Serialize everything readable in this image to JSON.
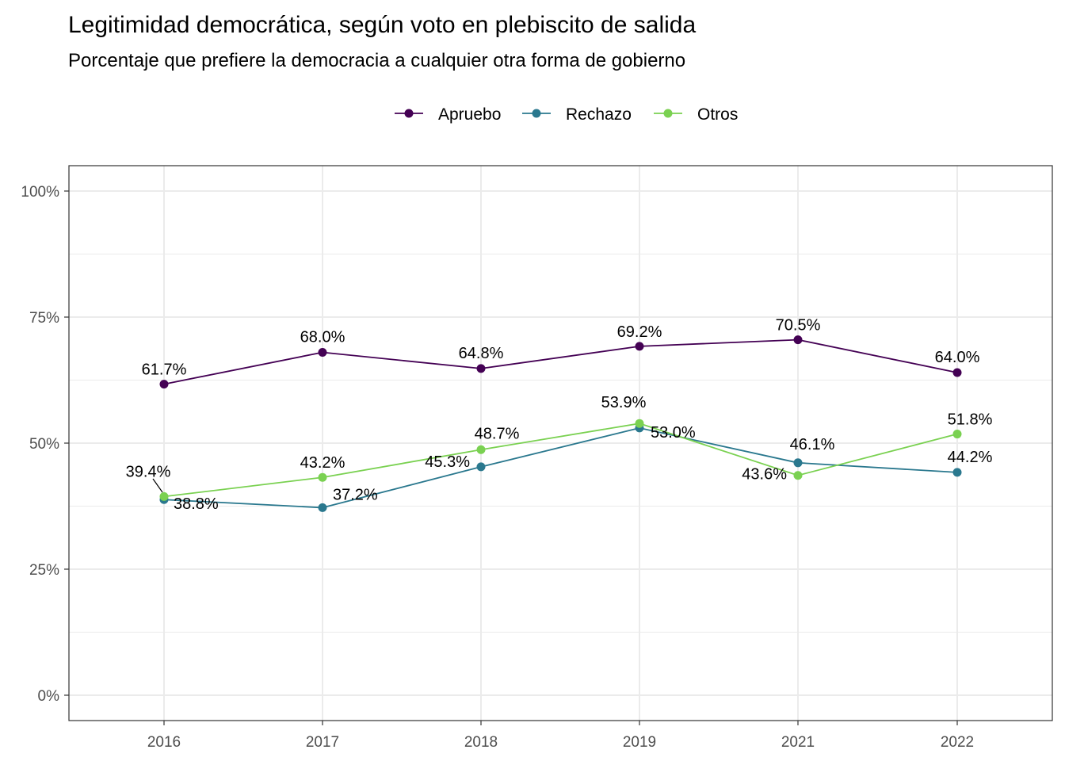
{
  "chart_data": {
    "type": "line",
    "title": "Legitimidad democrática, según voto en plebiscito de salida",
    "subtitle": "Porcentaje que prefiere la democracia a cualquier otra forma de gobierno",
    "categories": [
      "2016",
      "2017",
      "2018",
      "2019",
      "2021",
      "2022"
    ],
    "y_ticks": [
      "0%",
      "25%",
      "50%",
      "75%",
      "100%"
    ],
    "ylim": [
      0,
      100
    ],
    "grid": true,
    "legend_position": "top",
    "series": [
      {
        "name": "Apruebo",
        "color": "#440154",
        "values": [
          61.7,
          68.0,
          64.8,
          69.2,
          70.5,
          64.0
        ],
        "labels": [
          "61.7%",
          "68.0%",
          "64.8%",
          "69.2%",
          "70.5%",
          "64.0%"
        ]
      },
      {
        "name": "Rechazo",
        "color": "#2a788e",
        "values": [
          38.8,
          37.2,
          45.3,
          53.0,
          46.1,
          44.2
        ],
        "labels": [
          "38.8%",
          "37.2%",
          "45.3%",
          "53.0%",
          "46.1%",
          "44.2%"
        ]
      },
      {
        "name": "Otros",
        "color": "#7ad151",
        "values": [
          39.4,
          43.2,
          48.7,
          53.9,
          43.6,
          51.8
        ],
        "labels": [
          "39.4%",
          "43.2%",
          "48.7%",
          "53.9%",
          "43.6%",
          "51.8%"
        ]
      }
    ]
  }
}
